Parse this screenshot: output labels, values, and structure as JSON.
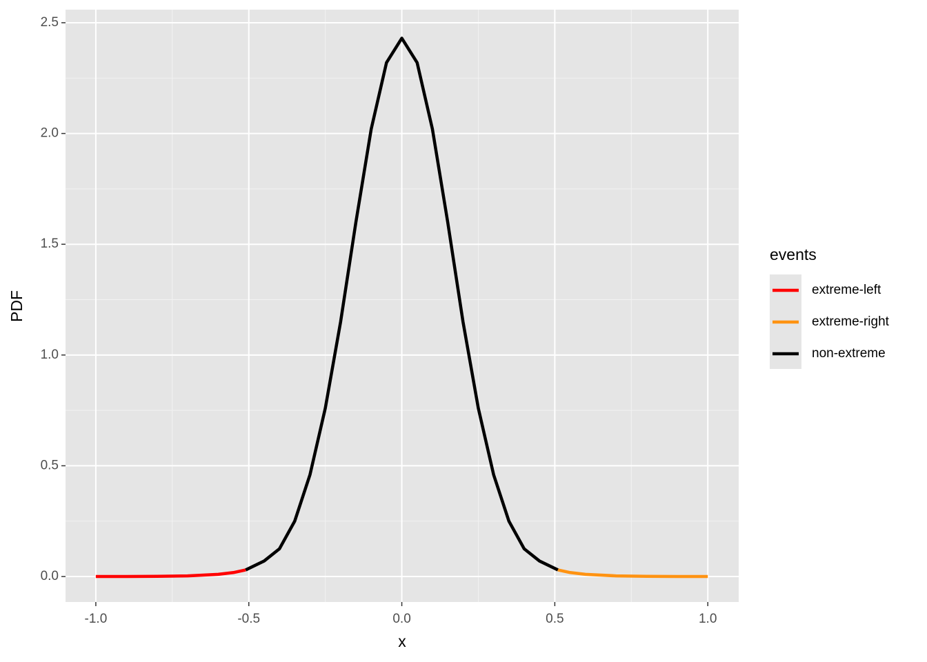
{
  "chart_data": {
    "type": "line",
    "x_label": "x",
    "y_label": "PDF",
    "legend_title": "events",
    "legend_position": "right",
    "grid": true,
    "xlim": [
      -1.099,
      1.101
    ],
    "ylim": [
      -0.115,
      2.559
    ],
    "xticks": [
      {
        "value": -1,
        "label": "-1.0"
      },
      {
        "value": -0.5,
        "label": "-0.5"
      },
      {
        "value": 0,
        "label": "0.0"
      },
      {
        "value": 0.5,
        "label": "0.5"
      },
      {
        "value": 1,
        "label": "1.0"
      }
    ],
    "yticks": [
      {
        "value": 0,
        "label": "0.0"
      },
      {
        "value": 0.5,
        "label": "0.5"
      },
      {
        "value": 1,
        "label": "1.0"
      },
      {
        "value": 1.5,
        "label": "1.5"
      },
      {
        "value": 2,
        "label": "2.0"
      },
      {
        "value": 2.5,
        "label": "2.5"
      }
    ],
    "series": [
      {
        "name": "extreme-left",
        "color": "#ff0000",
        "x": [
          -1,
          -0.9,
          -0.8,
          -0.7,
          -0.6,
          -0.55,
          -0.51
        ],
        "values": [
          0,
          0,
          0.001,
          0.003,
          0.01,
          0.018,
          0.03
        ]
      },
      {
        "name": "extreme-right",
        "color": "#ff9312",
        "x": [
          0.51,
          0.55,
          0.6,
          0.7,
          0.8,
          0.9,
          1
        ],
        "values": [
          0.03,
          0.018,
          0.01,
          0.003,
          0.001,
          0,
          0
        ]
      },
      {
        "name": "non-extreme",
        "color": "#000000",
        "x": [
          -0.51,
          -0.45,
          -0.4,
          -0.35,
          -0.3,
          -0.25,
          -0.2,
          -0.15,
          -0.1,
          -0.05,
          0,
          0.05,
          0.1,
          0.15,
          0.2,
          0.25,
          0.3,
          0.35,
          0.4,
          0.45,
          0.51
        ],
        "values": [
          0.03,
          0.07,
          0.125,
          0.25,
          0.46,
          0.76,
          1.15,
          1.6,
          2.02,
          2.32,
          2.43,
          2.32,
          2.02,
          1.6,
          1.15,
          0.76,
          0.46,
          0.25,
          0.125,
          0.07,
          0.03
        ]
      }
    ]
  }
}
